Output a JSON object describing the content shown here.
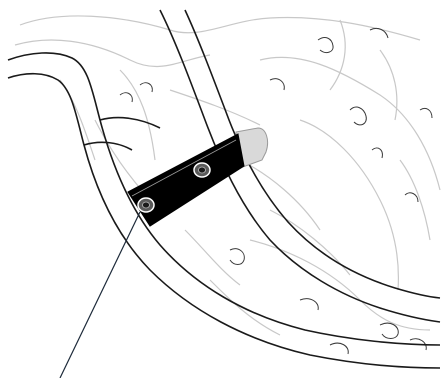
{
  "drawing": {
    "line_color": "#1a1a1a",
    "detail_color": "#c8c8c8",
    "part_color": "#000000",
    "part_highlight_color": "#9a9a9a",
    "part_end_color": "#d9d9d9",
    "leader_color": "#1d2a3a",
    "fastener_count": 2
  }
}
